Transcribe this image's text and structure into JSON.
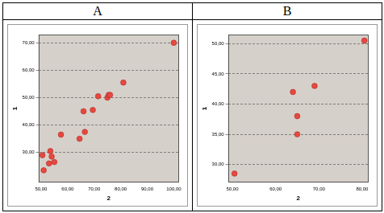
{
  "chart_data": [
    {
      "type": "scatter",
      "title": "A",
      "x_label": "2",
      "y_label": "1",
      "x": [
        50.5,
        51,
        53,
        53.5,
        54,
        55,
        57.5,
        64.5,
        66,
        66.5,
        69.5,
        71.5,
        75,
        75.5,
        76,
        81,
        100
      ],
      "values": [
        29,
        23.5,
        26,
        30.5,
        28.5,
        26.5,
        36.5,
        35,
        45,
        37.5,
        45.5,
        50.5,
        50,
        51,
        51,
        55.5,
        70
      ],
      "color": "#e8473f",
      "marker": "circle",
      "grid": true,
      "xlim": [
        49,
        102
      ],
      "xticks": [
        {
          "value": 50,
          "label": "50,00"
        },
        {
          "value": 60,
          "label": "60,00"
        },
        {
          "value": 70,
          "label": "70,00"
        },
        {
          "value": 80,
          "label": "80,00"
        },
        {
          "value": 90,
          "label": "90,00"
        },
        {
          "value": 100,
          "label": "100,00"
        }
      ],
      "ylim": [
        19,
        73
      ],
      "yticks": [
        {
          "value": 30,
          "label": "30,00"
        },
        {
          "value": 40,
          "label": "40,00"
        },
        {
          "value": 50,
          "label": "50,00"
        },
        {
          "value": 60,
          "label": "60,00"
        },
        {
          "value": 70,
          "label": "70,00"
        }
      ]
    },
    {
      "type": "scatter",
      "title": "B",
      "x_label": "2",
      "y_label": "1",
      "x": [
        50.5,
        64,
        65,
        65,
        69,
        80.5
      ],
      "values": [
        28.5,
        42,
        38,
        35,
        43,
        50.5
      ],
      "color": "#e8473f",
      "marker": "circle",
      "grid": true,
      "xlim": [
        49,
        81.5
      ],
      "xticks": [
        {
          "value": 50,
          "label": "50,00"
        },
        {
          "value": 60,
          "label": "60,00"
        },
        {
          "value": 70,
          "label": "70,00"
        },
        {
          "value": 80,
          "label": "80,00"
        }
      ],
      "ylim": [
        27,
        51.5
      ],
      "yticks": [
        {
          "value": 30,
          "label": "30,00"
        },
        {
          "value": 35,
          "label": "35,00"
        },
        {
          "value": 40,
          "label": "40,00"
        },
        {
          "value": 45,
          "label": "45,00"
        },
        {
          "value": 50,
          "label": "50,00"
        }
      ]
    }
  ]
}
